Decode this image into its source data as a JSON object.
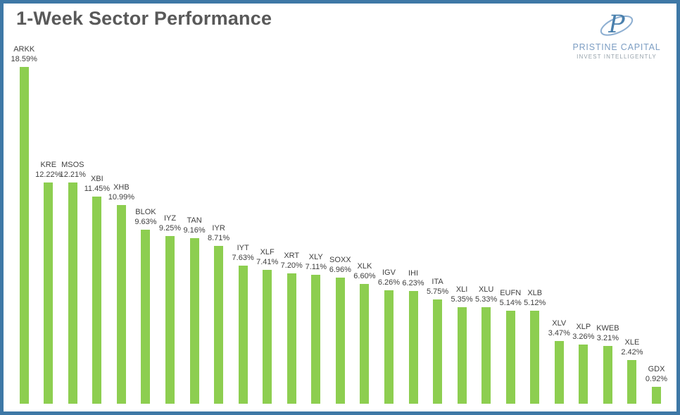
{
  "title": "1-Week Sector Performance",
  "logo": {
    "monogram": "P",
    "name": "PRISTINE CAPITAL",
    "tagline": "INVEST INTELLIGENTLY",
    "accent_color": "#4a80ad",
    "name_color": "#7d9ec3",
    "tagline_color": "#97a2ab"
  },
  "colors": {
    "frame_border": "#3e78a6",
    "bar_green": "#8dce50",
    "title_gray": "#595959",
    "label_gray": "#3f3f3f",
    "background": "#ffffff"
  },
  "chart_data": {
    "type": "bar",
    "title": "1-Week Sector Performance",
    "xlabel": "",
    "ylabel": "",
    "ylim": [
      0,
      19
    ],
    "grid": false,
    "legend": false,
    "bar_color": "#8dce50",
    "value_suffix": "%",
    "categories": [
      "ARKK",
      "KRE",
      "MSOS",
      "XBI",
      "XHB",
      "BLOK",
      "IYZ",
      "TAN",
      "IYR",
      "IYT",
      "XLF",
      "XRT",
      "XLY",
      "SOXX",
      "XLK",
      "IGV",
      "IHI",
      "ITA",
      "XLI",
      "XLU",
      "EUFN",
      "XLB",
      "XLV",
      "XLP",
      "KWEB",
      "XLE",
      "GDX"
    ],
    "values": [
      18.59,
      12.22,
      12.21,
      11.45,
      10.99,
      9.63,
      9.25,
      9.16,
      8.71,
      7.63,
      7.41,
      7.2,
      7.11,
      6.96,
      6.6,
      6.26,
      6.23,
      5.75,
      5.35,
      5.33,
      5.14,
      5.12,
      3.47,
      3.26,
      3.21,
      2.42,
      0.92
    ],
    "value_labels": [
      "18.59%",
      "12.22%",
      "12.21%",
      "11.45%",
      "10.99%",
      "9.63%",
      "9.25%",
      "9.16%",
      "8.71%",
      "7.63%",
      "7.41%",
      "7.20%",
      "7.11%",
      "6.96%",
      "6.60%",
      "6.26%",
      "6.23%",
      "5.75%",
      "5.35%",
      "5.33%",
      "5.14%",
      "5.12%",
      "3.47%",
      "3.26%",
      "3.21%",
      "2.42%",
      "0.92%"
    ]
  }
}
